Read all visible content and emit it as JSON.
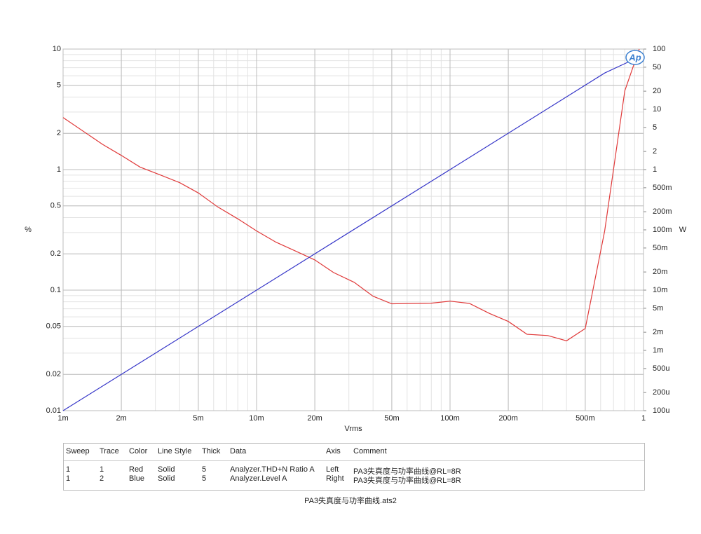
{
  "chart_data": {
    "type": "line",
    "xlabel": "Vrms",
    "ylabel": "%",
    "y2label": "W",
    "logo": "Ap",
    "xscale": "log",
    "yscale": "log",
    "y2scale": "log",
    "grid": true,
    "xlim": [
      0.001,
      1
    ],
    "ylim": [
      0.01,
      10
    ],
    "y2lim": [
      0.0001,
      100
    ],
    "xticks": [
      {
        "value": 0.001,
        "label": "1m"
      },
      {
        "value": 0.002,
        "label": "2m"
      },
      {
        "value": 0.005,
        "label": "5m"
      },
      {
        "value": 0.01,
        "label": "10m"
      },
      {
        "value": 0.02,
        "label": "20m"
      },
      {
        "value": 0.05,
        "label": "50m"
      },
      {
        "value": 0.1,
        "label": "100m"
      },
      {
        "value": 0.2,
        "label": "200m"
      },
      {
        "value": 0.5,
        "label": "500m"
      },
      1
    ],
    "yticks": [
      0.01,
      0.02,
      0.05,
      0.1,
      0.2,
      0.5,
      1,
      2,
      5,
      10
    ],
    "y2ticks": [
      {
        "value": 0.0001,
        "label": "100u"
      },
      {
        "value": 0.0002,
        "label": "200u"
      },
      {
        "value": 0.0005,
        "label": "500u"
      },
      {
        "value": 0.001,
        "label": "1m"
      },
      {
        "value": 0.002,
        "label": "2m"
      },
      {
        "value": 0.005,
        "label": "5m"
      },
      {
        "value": 0.01,
        "label": "10m"
      },
      {
        "value": 0.02,
        "label": "20m"
      },
      {
        "value": 0.05,
        "label": "50m"
      },
      {
        "value": 0.1,
        "label": "100m"
      },
      {
        "value": 0.2,
        "label": "200m"
      },
      {
        "value": 0.5,
        "label": "500m"
      },
      1,
      2,
      5,
      10,
      20,
      50,
      100
    ],
    "series": [
      {
        "color": "#e03a3a",
        "x": [
          0.001,
          0.0016,
          0.002,
          0.0025,
          0.0032,
          0.004,
          0.005,
          0.0063,
          0.008,
          0.01,
          0.0126,
          0.016,
          0.02,
          0.025,
          0.032,
          0.04,
          0.05,
          0.063,
          0.08,
          0.1,
          0.126,
          0.16,
          0.2,
          0.25,
          0.32,
          0.4,
          0.5,
          0.63,
          0.8,
          0.95
        ],
        "values": [
          2.7,
          1.62,
          1.31,
          1.05,
          0.9,
          0.78,
          0.64,
          0.49,
          0.39,
          0.31,
          0.25,
          0.21,
          0.178,
          0.14,
          0.116,
          0.089,
          0.077,
          0.0775,
          0.078,
          0.081,
          0.0775,
          0.064,
          0.055,
          0.043,
          0.042,
          0.038,
          0.048,
          0.31,
          4.5,
          10
        ]
      },
      {
        "color": "#3636c8",
        "axis": "y2",
        "x": [
          0.001,
          0.01,
          0.1,
          0.63,
          1
        ],
        "values": [
          0.0001,
          0.01,
          1,
          40,
          80
        ]
      }
    ]
  },
  "table": {
    "header": [
      "Sweep",
      "Trace",
      "Color",
      "Line Style",
      "Thick",
      "Data",
      "Axis",
      "Comment"
    ],
    "rows": [
      [
        "1",
        "1",
        "Red",
        "Solid",
        "5",
        "Analyzer.THD+N Ratio A",
        "Left",
        "PA3失真度与功率曲线@RL=8R"
      ],
      [
        "1",
        "2",
        "Blue",
        "Solid",
        "5",
        "Analyzer.Level A",
        "Right",
        "PA3失真度与功率曲线@RL=8R"
      ]
    ]
  },
  "footer": "PA3失真度与功率曲线.ats2"
}
